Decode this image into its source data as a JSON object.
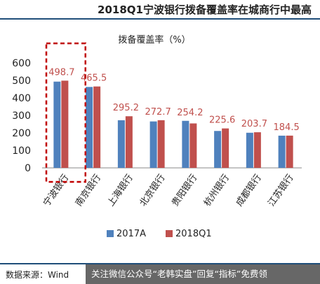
{
  "header": {
    "title": "2018Q1宁波银行拨备覆盖率在城商行中最高"
  },
  "chart_data": {
    "type": "bar",
    "title": "拨备覆盖率（%）",
    "categories": [
      "宁波银行",
      "南京银行",
      "上海银行",
      "北京银行",
      "贵阳银行",
      "杭州银行",
      "成都银行",
      "江苏银行"
    ],
    "series": [
      {
        "name": "2017A",
        "values": [
          493.3,
          462.7,
          272.5,
          265.6,
          269.0,
          211.1,
          200.9,
          184.3
        ],
        "color": "#4f81bd"
      },
      {
        "name": "2018Q1",
        "values": [
          498.7,
          465.5,
          295.2,
          272.7,
          254.2,
          225.6,
          203.7,
          184.5
        ],
        "color": "#c0504d"
      }
    ],
    "data_labels": [
      "498.7",
      "465.5",
      "295.2",
      "272.7",
      "254.2",
      "225.6",
      "203.7",
      "184.5"
    ],
    "data_label_color": "#c0504d",
    "yticks": [
      "0",
      "100",
      "200",
      "300",
      "400",
      "500",
      "600"
    ],
    "ylim": [
      0,
      600
    ],
    "grid": false,
    "legend_position": "bottom",
    "highlight_category": "宁波银行",
    "highlight_color": "#c00000"
  },
  "footer": {
    "source": "数据来源：Wind",
    "banner": "关注微信公众号“老韩实盘”回复“指标”免费领"
  }
}
